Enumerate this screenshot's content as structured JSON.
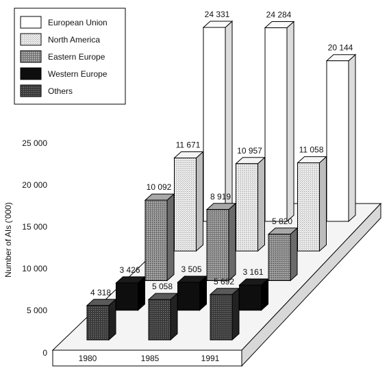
{
  "colors": {
    "european_union": "#ffffff",
    "north_america": "#e6e6e6",
    "eastern_europe": "#8f8f8f",
    "western_europe": "#0e0e0e",
    "others": "#3a3a3a"
  },
  "chart_data": {
    "type": "bar",
    "title": "",
    "xlabel": "",
    "ylabel": "Number of AIs ('000)",
    "ylim": [
      0,
      25000
    ],
    "yticks": [
      "0",
      "5 000",
      "10 000",
      "15 000",
      "20 000",
      "25 000"
    ],
    "categories": [
      "1980",
      "1985",
      "1991"
    ],
    "legend_position": "top-left",
    "series": [
      {
        "name": "European Union",
        "values": [
          24331,
          24284,
          20144
        ],
        "labels": [
          "24 331",
          "24 284",
          "20 144"
        ]
      },
      {
        "name": "North America",
        "values": [
          11671,
          10957,
          11058
        ],
        "labels": [
          "11 671",
          "10 957",
          "11 058"
        ]
      },
      {
        "name": "Eastern Europe",
        "values": [
          10092,
          8919,
          5820
        ],
        "labels": [
          "10 092",
          "8 919",
          "5 820"
        ]
      },
      {
        "name": "Western Europe",
        "values": [
          3426,
          3505,
          3161
        ],
        "labels": [
          "3 426",
          "3 505",
          "3 161"
        ]
      },
      {
        "name": "Others",
        "values": [
          4318,
          5058,
          5692
        ],
        "labels": [
          "4 318",
          "5 058",
          "5 692"
        ]
      }
    ]
  }
}
